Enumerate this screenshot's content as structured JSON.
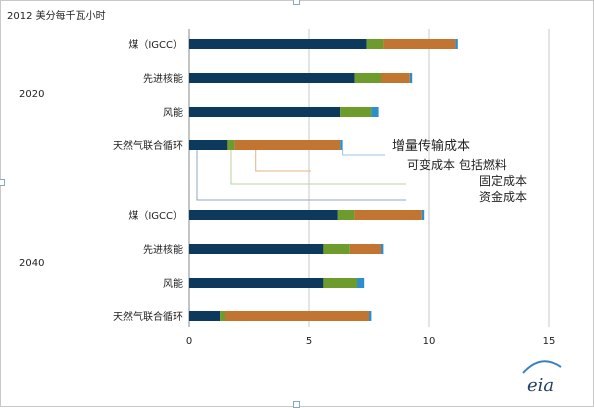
{
  "chart_data": {
    "type": "bar",
    "stacked": true,
    "orientation": "horizontal",
    "title": "2012 美分每千瓦小时",
    "groups": [
      {
        "label": "2020",
        "rows": [
          {
            "label": "煤（IGCC）",
            "values": [
              7.4,
              0.7,
              3.0,
              0.1
            ]
          },
          {
            "label": "先进核能",
            "values": [
              6.9,
              1.1,
              1.2,
              0.1
            ]
          },
          {
            "label": "风能",
            "values": [
              6.3,
              1.3,
              0.0,
              0.3
            ]
          },
          {
            "label": "天然气联合循环",
            "values": [
              1.6,
              0.3,
              4.4,
              0.1
            ]
          }
        ]
      },
      {
        "label": "2040",
        "rows": [
          {
            "label": "煤（IGCC）",
            "values": [
              6.2,
              0.7,
              2.8,
              0.1
            ]
          },
          {
            "label": "先进核能",
            "values": [
              5.6,
              1.1,
              1.3,
              0.1
            ]
          },
          {
            "label": "风能",
            "values": [
              5.6,
              1.4,
              0.0,
              0.3
            ]
          },
          {
            "label": "天然气联合循环",
            "values": [
              1.3,
              0.2,
              6.0,
              0.1
            ]
          }
        ]
      }
    ],
    "series": [
      {
        "name": "资金成本",
        "color": "#0d3a5c"
      },
      {
        "name": "固定成本",
        "color": "#6e9c2c"
      },
      {
        "name": "可变成本 包括燃料",
        "color": "#c27530"
      },
      {
        "name": "增量传输成本",
        "color": "#2e8ec9"
      }
    ],
    "xlim": [
      0,
      15
    ],
    "xticks": [
      "0",
      "5",
      "10",
      "15"
    ],
    "grid": true,
    "annotations": [
      "增量传输成本",
      "可变成本 包括燃料",
      "固定成本",
      "资金成本"
    ],
    "logo": "eia"
  }
}
